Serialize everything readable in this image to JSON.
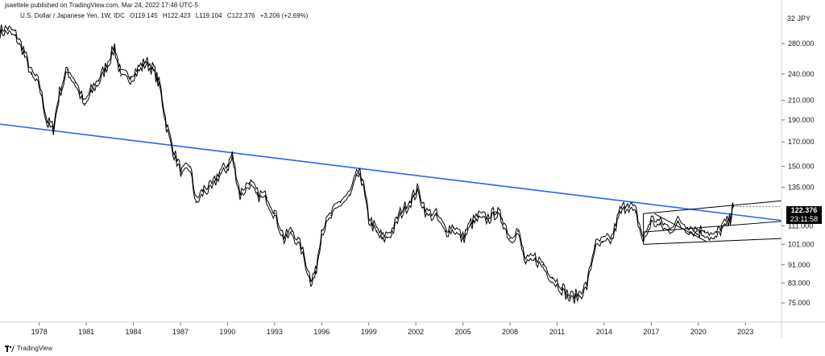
{
  "header": {
    "publisher": "jsaettele published on TradingView.com, Mar 24, 2022 17:48 UTC-5",
    "symbol": "U.S. Dollar / Japanese Yen, 1W, IDC",
    "open": "O119.145",
    "high": "H122.423",
    "low": "L119.104",
    "close": "C122.376",
    "change": "+3.206 (+2.69%)"
  },
  "price_axis": {
    "currency": "JPY",
    "scale_label": "32"
  },
  "last_price": {
    "value": "122.376",
    "countdown": "23:11:58"
  },
  "footer": {
    "brand": "TradingView"
  },
  "colors": {
    "trendline": "#2962ff",
    "candles": "#000000",
    "badge": "#000000"
  },
  "chart_data": {
    "type": "line",
    "title": "U.S. Dollar / Japanese Yen, 1W, IDC",
    "scale": "log",
    "y_ticks": [
      280,
      240,
      210,
      190,
      170,
      150,
      135,
      111,
      101,
      91,
      83,
      75
    ],
    "y_tick_labels": [
      "280.000",
      "240.000",
      "210.000",
      "190.000",
      "170.000",
      "150.000",
      "135.000",
      "111.000",
      "101.000",
      "91.000",
      "83.000",
      "75.000"
    ],
    "x_ticks": [
      1978,
      1981,
      1984,
      1987,
      1990,
      1993,
      1996,
      1999,
      2002,
      2005,
      2008,
      2011,
      2014,
      2017,
      2020,
      2023
    ],
    "x_tick_labels": [
      "1978",
      "1981",
      "1984",
      "1987",
      "1990",
      "1993",
      "1996",
      "1999",
      "2002",
      "2005",
      "2008",
      "2011",
      "2014",
      "2017",
      "2020",
      "2023"
    ],
    "xlim": [
      1975.5,
      2025.3
    ],
    "ylim": [
      68,
      330
    ],
    "series": [
      {
        "name": "USDJPY weekly close",
        "x": [
          1975.5,
          1976.0,
          1976.5,
          1977.0,
          1977.5,
          1978.0,
          1978.5,
          1978.9,
          1979.3,
          1979.8,
          1980.3,
          1980.9,
          1981.3,
          1981.8,
          1982.3,
          1982.8,
          1983.2,
          1983.8,
          1984.3,
          1984.8,
          1985.3,
          1985.7,
          1986.1,
          1986.6,
          1987.1,
          1987.6,
          1988.0,
          1988.5,
          1989.0,
          1989.5,
          1990.0,
          1990.3,
          1990.8,
          1991.4,
          1991.9,
          1992.5,
          1993.0,
          1993.6,
          1994.1,
          1994.7,
          1995.3,
          1995.6,
          1996.0,
          1996.6,
          1997.2,
          1997.8,
          1998.3,
          1998.6,
          1999.0,
          1999.5,
          1999.9,
          2000.5,
          2001.0,
          2001.6,
          2002.1,
          2002.7,
          2003.3,
          2003.9,
          2004.4,
          2005.0,
          2005.5,
          2006.0,
          2006.6,
          2007.1,
          2007.5,
          2008.0,
          2008.5,
          2009.0,
          2009.6,
          2010.1,
          2010.7,
          2011.3,
          2011.8,
          2012.4,
          2012.9,
          2013.4,
          2013.9,
          2014.5,
          2015.0,
          2015.5,
          2016.0,
          2016.5,
          2017.0,
          2017.6,
          2018.1,
          2018.7,
          2019.3,
          2019.9,
          2020.4,
          2021.0,
          2021.5,
          2022.0,
          2022.23
        ],
        "y": [
          298,
          300,
          292,
          270,
          240,
          228,
          188,
          182,
          218,
          245,
          230,
          205,
          220,
          232,
          250,
          275,
          238,
          236,
          245,
          255,
          245,
          225,
          185,
          160,
          145,
          150,
          125,
          133,
          135,
          145,
          150,
          158,
          130,
          138,
          130,
          128,
          118,
          104,
          108,
          99,
          84,
          87,
          108,
          117,
          125,
          130,
          145,
          140,
          115,
          108,
          104,
          108,
          118,
          125,
          133,
          118,
          117,
          108,
          110,
          104,
          112,
          116,
          115,
          119,
          115,
          104,
          108,
          92,
          94,
          91,
          85,
          81,
          77,
          78,
          82,
          100,
          102,
          104,
          119,
          124,
          119,
          103,
          114,
          112,
          109,
          113,
          110,
          108,
          108,
          104,
          110,
          114,
          122.4
        ]
      }
    ],
    "trendlines": [
      {
        "name": "long-term trendline",
        "color": "#2962ff",
        "x": [
          1975.5,
          2025.3
        ],
        "y": [
          186,
          114
        ]
      },
      {
        "name": "channel upper",
        "color": "#000000",
        "x": [
          2016.5,
          2025.3
        ],
        "y": [
          118,
          126
        ]
      },
      {
        "name": "channel lower",
        "color": "#000000",
        "x": [
          2016.5,
          2025.3
        ],
        "y": [
          101,
          104
        ]
      },
      {
        "name": "support line",
        "color": "#000000",
        "x": [
          2016.5,
          2025.3
        ],
        "y": [
          107.5,
          113.5
        ]
      },
      {
        "name": "diagonal",
        "color": "#000000",
        "x": [
          2017.2,
          2020.5
        ],
        "y": [
          118,
          102.5
        ]
      },
      {
        "name": "channel start",
        "color": "#000000",
        "x": [
          2016.5,
          2016.5
        ],
        "y": [
          101,
          118
        ]
      }
    ]
  }
}
